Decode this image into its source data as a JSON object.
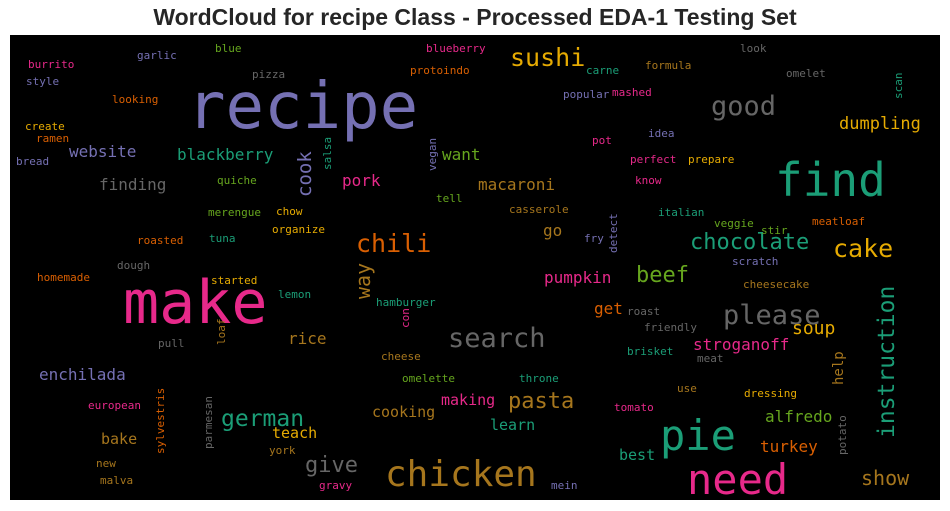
{
  "title": "WordCloud for recipe Class - Processed EDA-1 Testing Set",
  "words": [
    {
      "text": "recipe",
      "color": "#7570b3"
    },
    {
      "text": "make",
      "color": "#e7298a"
    },
    {
      "text": "find",
      "color": "#1b9e77"
    },
    {
      "text": "need",
      "color": "#e7298a"
    },
    {
      "text": "pie",
      "color": "#1b9e77"
    },
    {
      "text": "chicken",
      "color": "#a6761d"
    },
    {
      "text": "search",
      "color": "#666666"
    },
    {
      "text": "please",
      "color": "#666666"
    },
    {
      "text": "good",
      "color": "#666666"
    },
    {
      "text": "sushi",
      "color": "#e6ab02"
    },
    {
      "text": "chili",
      "color": "#d95f02"
    },
    {
      "text": "cake",
      "color": "#e6ab02"
    },
    {
      "text": "chocolate",
      "color": "#1b9e77"
    },
    {
      "text": "instruction",
      "color": "#1b9e77"
    },
    {
      "text": "beef",
      "color": "#66a61e"
    },
    {
      "text": "german",
      "color": "#1b9e77"
    },
    {
      "text": "give",
      "color": "#666666"
    },
    {
      "text": "pasta",
      "color": "#a6761d"
    },
    {
      "text": "way",
      "color": "#a6761d"
    },
    {
      "text": "cook",
      "color": "#7570b3"
    },
    {
      "text": "show",
      "color": "#a6761d"
    },
    {
      "text": "dumpling",
      "color": "#e6ab02"
    },
    {
      "text": "soup",
      "color": "#e6ab02"
    },
    {
      "text": "blackberry",
      "color": "#1b9e77"
    },
    {
      "text": "website",
      "color": "#7570b3"
    },
    {
      "text": "finding",
      "color": "#666666"
    },
    {
      "text": "macaroni",
      "color": "#a6761d"
    },
    {
      "text": "pork",
      "color": "#e7298a"
    },
    {
      "text": "want",
      "color": "#66a61e"
    },
    {
      "text": "stroganoff",
      "color": "#e7298a"
    },
    {
      "text": "enchilada",
      "color": "#7570b3"
    },
    {
      "text": "rice",
      "color": "#a6761d"
    },
    {
      "text": "pumpkin",
      "color": "#e7298a"
    },
    {
      "text": "get",
      "color": "#d95f02"
    },
    {
      "text": "go",
      "color": "#a6761d"
    },
    {
      "text": "alfredo",
      "color": "#66a61e"
    },
    {
      "text": "turkey",
      "color": "#d95f02"
    },
    {
      "text": "help",
      "color": "#a6761d"
    },
    {
      "text": "making",
      "color": "#e7298a"
    },
    {
      "text": "cooking",
      "color": "#a6761d"
    },
    {
      "text": "learn",
      "color": "#1b9e77"
    },
    {
      "text": "teach",
      "color": "#e6ab02"
    },
    {
      "text": "bake",
      "color": "#a6761d"
    },
    {
      "text": "best",
      "color": "#1b9e77"
    },
    {
      "text": "burrito",
      "color": "#e7298a"
    },
    {
      "text": "style",
      "color": "#7570b3"
    },
    {
      "text": "garlic",
      "color": "#7570b3"
    },
    {
      "text": "blue",
      "color": "#66a61e"
    },
    {
      "text": "pizza",
      "color": "#666666"
    },
    {
      "text": "blueberry",
      "color": "#e7298a"
    },
    {
      "text": "protoindo",
      "color": "#d95f02"
    },
    {
      "text": "carne",
      "color": "#1b9e77"
    },
    {
      "text": "formula",
      "color": "#a6761d"
    },
    {
      "text": "look",
      "color": "#666666"
    },
    {
      "text": "omelet",
      "color": "#666666"
    },
    {
      "text": "scan",
      "color": "#1b9e77"
    },
    {
      "text": "looking",
      "color": "#d95f02"
    },
    {
      "text": "popular",
      "color": "#7570b3"
    },
    {
      "text": "mashed",
      "color": "#e7298a"
    },
    {
      "text": "create",
      "color": "#e6ab02"
    },
    {
      "text": "ramen",
      "color": "#d95f02"
    },
    {
      "text": "bread",
      "color": "#7570b3"
    },
    {
      "text": "idea",
      "color": "#7570b3"
    },
    {
      "text": "pot",
      "color": "#e7298a"
    },
    {
      "text": "perfect",
      "color": "#e7298a"
    },
    {
      "text": "prepare",
      "color": "#e6ab02"
    },
    {
      "text": "know",
      "color": "#e7298a"
    },
    {
      "text": "salsa",
      "color": "#1b9e77"
    },
    {
      "text": "vegan",
      "color": "#7570b3"
    },
    {
      "text": "quiche",
      "color": "#66a61e"
    },
    {
      "text": "tell",
      "color": "#66a61e"
    },
    {
      "text": "merengue",
      "color": "#66a61e"
    },
    {
      "text": "chow",
      "color": "#e6ab02"
    },
    {
      "text": "casserole",
      "color": "#a6761d"
    },
    {
      "text": "italian",
      "color": "#1b9e77"
    },
    {
      "text": "veggie",
      "color": "#66a61e"
    },
    {
      "text": "stir",
      "color": "#66a61e"
    },
    {
      "text": "meatloaf",
      "color": "#d95f02"
    },
    {
      "text": "detect",
      "color": "#7570b3"
    },
    {
      "text": "fry",
      "color": "#7570b3"
    },
    {
      "text": "scratch",
      "color": "#7570b3"
    },
    {
      "text": "roasted",
      "color": "#d95f02"
    },
    {
      "text": "tuna",
      "color": "#1b9e77"
    },
    {
      "text": "organize",
      "color": "#e6ab02"
    },
    {
      "text": "homemade",
      "color": "#d95f02"
    },
    {
      "text": "dough",
      "color": "#666666"
    },
    {
      "text": "started",
      "color": "#e6ab02"
    },
    {
      "text": "lemon",
      "color": "#1b9e77"
    },
    {
      "text": "hamburger",
      "color": "#1b9e77"
    },
    {
      "text": "cheesecake",
      "color": "#a6761d"
    },
    {
      "text": "roast",
      "color": "#666666"
    },
    {
      "text": "friendly",
      "color": "#666666"
    },
    {
      "text": "con",
      "color": "#e7298a"
    },
    {
      "text": "loaf",
      "color": "#a6761d"
    },
    {
      "text": "pull",
      "color": "#666666"
    },
    {
      "text": "brisket",
      "color": "#1b9e77"
    },
    {
      "text": "meat",
      "color": "#666666"
    },
    {
      "text": "cheese",
      "color": "#a6761d"
    },
    {
      "text": "omelette",
      "color": "#66a61e"
    },
    {
      "text": "throne",
      "color": "#1b9e77"
    },
    {
      "text": "use",
      "color": "#a6761d"
    },
    {
      "text": "dressing",
      "color": "#e6ab02"
    },
    {
      "text": "sylvestris",
      "color": "#d95f02"
    },
    {
      "text": "parmesan",
      "color": "#666666"
    },
    {
      "text": "european",
      "color": "#e7298a"
    },
    {
      "text": "tomato",
      "color": "#e7298a"
    },
    {
      "text": "potato",
      "color": "#666666"
    },
    {
      "text": "york",
      "color": "#a6761d"
    },
    {
      "text": "new",
      "color": "#a6761d"
    },
    {
      "text": "malva",
      "color": "#a6761d"
    },
    {
      "text": "gravy",
      "color": "#e7298a"
    },
    {
      "text": "mein",
      "color": "#7570b3"
    }
  ]
}
